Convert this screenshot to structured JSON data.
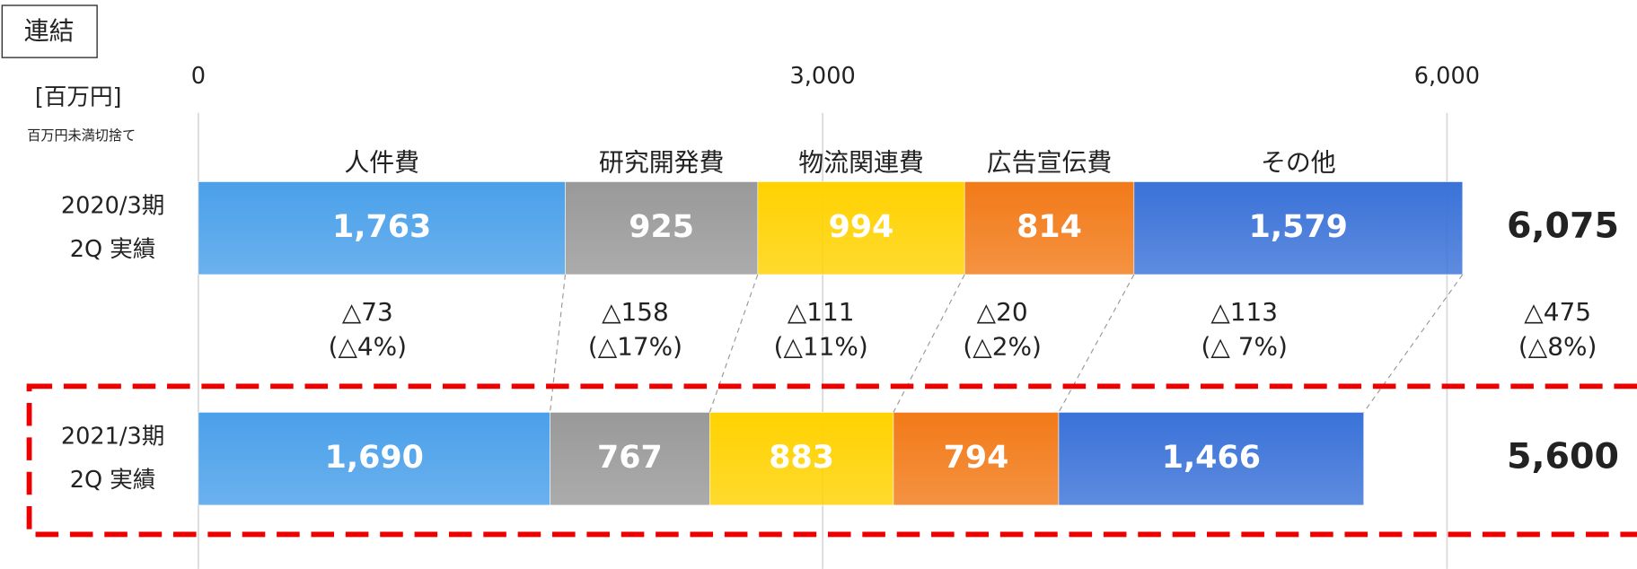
{
  "chart_data": {
    "type": "stacked-bar-horizontal",
    "label": "連結",
    "unit": "[百万円]",
    "note": "百万円未満切捨て",
    "categories": [
      [
        "2020/3期",
        "2Q 実績"
      ],
      [
        "2021/3期",
        "2Q 実績"
      ]
    ],
    "series": [
      {
        "name": "人件費",
        "color": "#4aa0ea",
        "values": [
          1763,
          1690
        ],
        "value_labels": [
          "1,763",
          "1,690"
        ]
      },
      {
        "name": "研究開発費",
        "color": "#999999",
        "values": [
          925,
          767
        ],
        "value_labels": [
          "925",
          "767"
        ]
      },
      {
        "name": "物流関連費",
        "color": "#ffd200",
        "values": [
          994,
          883
        ],
        "value_labels": [
          "994",
          "883"
        ]
      },
      {
        "name": "広告宣伝費",
        "color": "#f27a18",
        "values": [
          814,
          794
        ],
        "value_labels": [
          "814",
          "794"
        ]
      },
      {
        "name": "その他",
        "color": "#3a72d8",
        "values": [
          1579,
          1466
        ],
        "value_labels": [
          "1,579",
          "1,466"
        ]
      }
    ],
    "totals": [
      6075,
      5600
    ],
    "total_labels": [
      "6,075",
      "5,600"
    ],
    "changes": [
      [
        "△73",
        "(△4%)"
      ],
      [
        "△158",
        "(△17%)"
      ],
      [
        "△111",
        "(△11%)"
      ],
      [
        "△20",
        "(△2%)"
      ],
      [
        "△113",
        "(△ 7%)"
      ],
      [
        "△475",
        "(△8%)"
      ]
    ],
    "xlim": [
      0,
      6000
    ],
    "xticks": [
      0,
      {
        "value": 3000,
        "label": "3,000"
      },
      {
        "value": 6000,
        "label": "6,000"
      }
    ],
    "grid": true
  }
}
